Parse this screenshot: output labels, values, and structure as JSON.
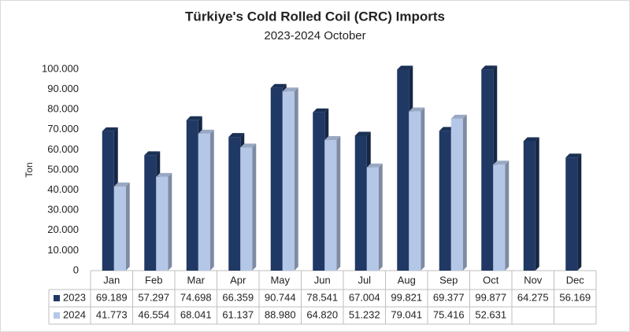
{
  "chart_data": {
    "type": "bar",
    "title": "Türkiye's Cold Rolled Coil (CRC) Imports",
    "subtitle": "2023-2024 October",
    "y_label": "Ton",
    "categories": [
      "Jan",
      "Feb",
      "Mar",
      "Apr",
      "May",
      "Jun",
      "Jul",
      "Aug",
      "Sep",
      "Oct",
      "Nov",
      "Dec"
    ],
    "series": [
      {
        "name": "2023",
        "color": "#203864",
        "values": [
          69189,
          57297,
          74698,
          66359,
          90744,
          78541,
          67004,
          99821,
          69377,
          99877,
          64275,
          56169
        ],
        "value_labels": [
          "69.189",
          "57.297",
          "74.698",
          "66.359",
          "90.744",
          "78.541",
          "67.004",
          "99.821",
          "69.377",
          "99.877",
          "64.275",
          "56.169"
        ]
      },
      {
        "name": "2024",
        "color": "#b4c7e7",
        "values": [
          41773,
          46554,
          68041,
          61137,
          88980,
          64820,
          51232,
          79041,
          75416,
          52631,
          null,
          null
        ],
        "value_labels": [
          "41.773",
          "46.554",
          "68.041",
          "61.137",
          "88.980",
          "64.820",
          "51.232",
          "79.041",
          "75.416",
          "52.631",
          null,
          null
        ]
      }
    ],
    "ylim": [
      0,
      100000
    ],
    "yticks": [
      0,
      {
        "value": 10000,
        "label": "10.000"
      },
      {
        "value": 20000,
        "label": "20.000"
      },
      {
        "value": 30000,
        "label": "30.000"
      },
      {
        "value": 40000,
        "label": "40.000"
      },
      {
        "value": 50000,
        "label": "50.000"
      },
      {
        "value": 60000,
        "label": "60.000"
      },
      {
        "value": 70000,
        "label": "70.000"
      },
      {
        "value": 80000,
        "label": "80.000"
      },
      {
        "value": 90000,
        "label": "90.000"
      },
      {
        "value": 100000,
        "label": "100.000"
      }
    ],
    "grid": false
  }
}
